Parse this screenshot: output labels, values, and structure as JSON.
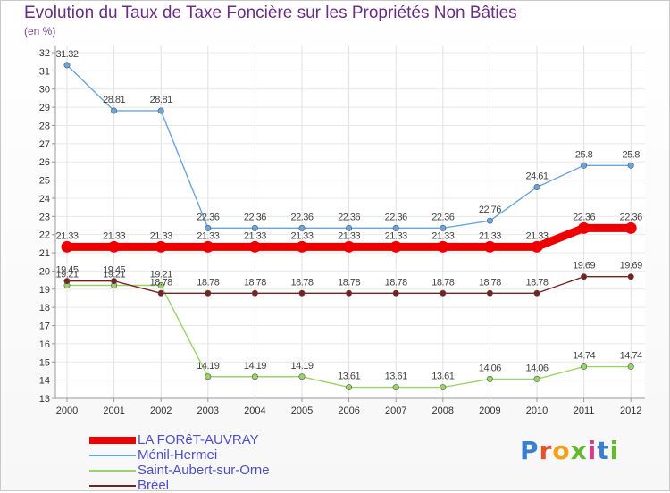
{
  "chart_data": {
    "type": "line",
    "title": "Evolution du Taux de Taxe Foncière sur les Propriétés Non Bâties",
    "ylabel": "(en %)",
    "xlabel": "",
    "x": [
      "2000",
      "2001",
      "2002",
      "2003",
      "2004",
      "2005",
      "2006",
      "2007",
      "2008",
      "2009",
      "2010",
      "2011",
      "2012"
    ],
    "ylim": [
      13,
      32
    ],
    "yticks": [
      13,
      14,
      15,
      16,
      17,
      18,
      19,
      20,
      21,
      22,
      23,
      24,
      25,
      26,
      27,
      28,
      29,
      30,
      31,
      32
    ],
    "series": [
      {
        "name": "LA FORêT-AUVRAY",
        "color": "#ee0000",
        "values": [
          21.33,
          21.33,
          21.33,
          21.33,
          21.33,
          21.33,
          21.33,
          21.33,
          21.33,
          21.33,
          21.33,
          22.36,
          22.36
        ],
        "labels": [
          "21.33",
          "21.33",
          "21.33",
          "21.33",
          "21.33",
          "21.33",
          "21.33",
          "21.33",
          "21.33",
          "21.33",
          "21.33",
          "22.36",
          "22.36"
        ]
      },
      {
        "name": "Ménil-Hermei",
        "color": "#6aa4dc",
        "values": [
          31.32,
          28.81,
          28.81,
          22.36,
          22.36,
          22.36,
          22.36,
          22.36,
          22.36,
          22.76,
          24.61,
          25.8,
          25.8
        ],
        "labels": [
          "31.32",
          "28.81",
          "28.81",
          "22.36",
          "22.36",
          "22.36",
          "22.36",
          "22.36",
          "22.36",
          "22.76",
          "24.61",
          "25.8",
          "25.8"
        ]
      },
      {
        "name": "Saint-Aubert-sur-Orne",
        "color": "#99d466",
        "values": [
          19.21,
          19.21,
          19.21,
          14.19,
          14.19,
          14.19,
          13.61,
          13.61,
          13.61,
          14.06,
          14.06,
          14.74,
          14.74
        ],
        "labels": [
          "19.21",
          "19.21",
          "19.21",
          "14.19",
          "14.19",
          "14.19",
          "13.61",
          "13.61",
          "13.61",
          "14.06",
          "14.06",
          "14.74",
          "14.74"
        ]
      },
      {
        "name": "Bréel",
        "color": "#7a2020",
        "values": [
          19.45,
          19.45,
          18.78,
          18.78,
          18.78,
          18.78,
          18.78,
          18.78,
          18.78,
          18.78,
          18.78,
          19.69,
          19.69
        ],
        "labels": [
          "19.45",
          "19.45",
          "18.78",
          "18.78",
          "18.78",
          "18.78",
          "18.78",
          "18.78",
          "18.78",
          "18.78",
          "18.78",
          "19.69",
          "19.69"
        ]
      }
    ],
    "legend_position": "bottom-left"
  },
  "logo": {
    "text": "Proxiti"
  }
}
